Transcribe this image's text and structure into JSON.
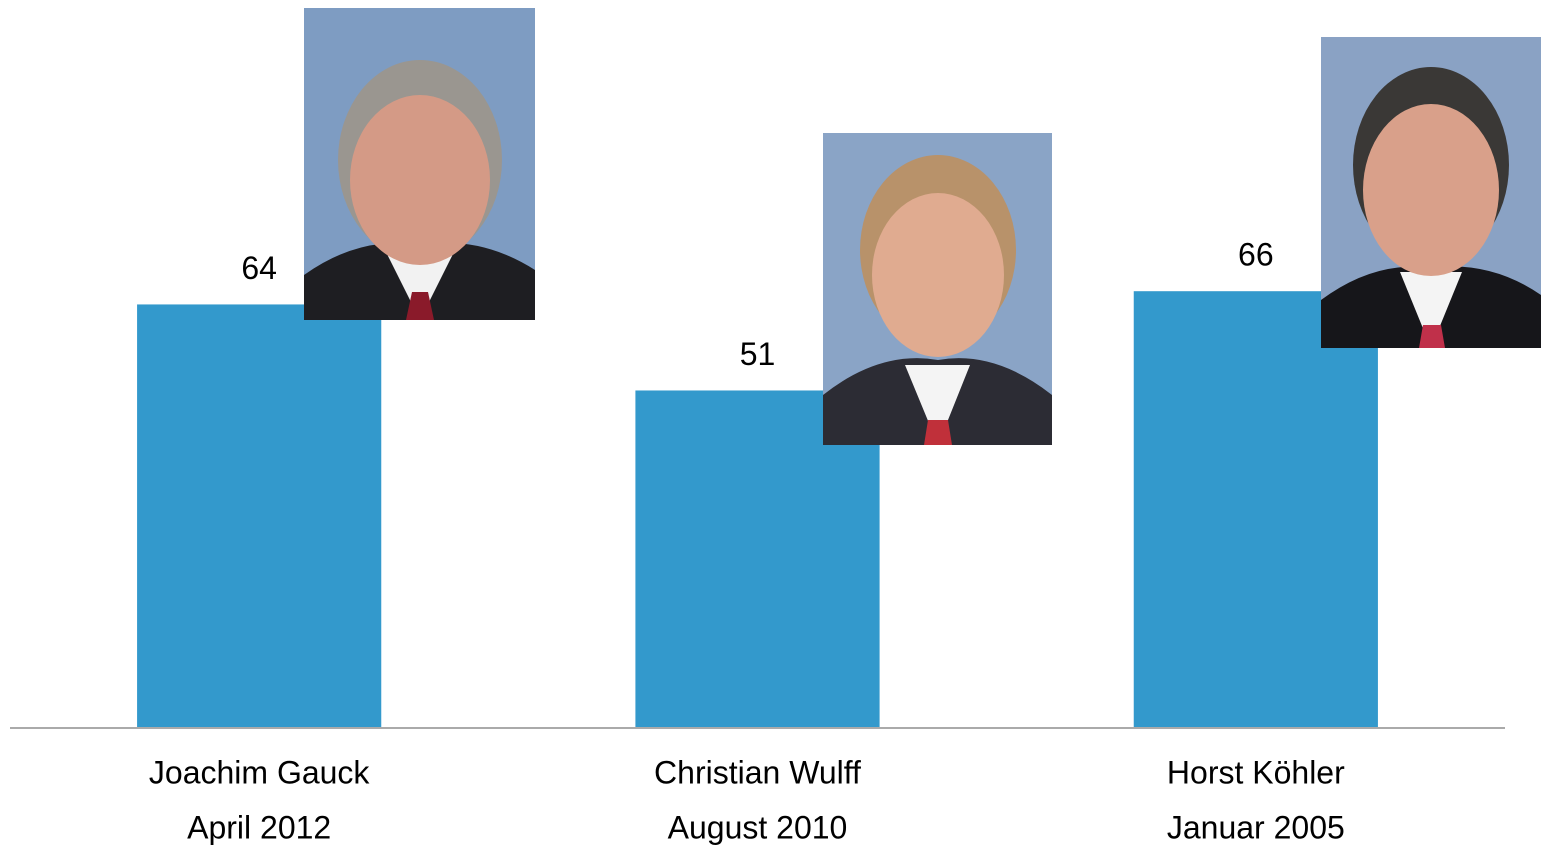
{
  "chart_data": {
    "type": "bar",
    "categories": [
      [
        "Joachim Gauck",
        "April 2012"
      ],
      [
        "Christian Wulff",
        "August 2010"
      ],
      [
        "Horst Köhler",
        "Januar 2005"
      ]
    ],
    "values": [
      64,
      51,
      66
    ],
    "color": "#3399cc",
    "ylim": [
      0,
      110
    ]
  }
}
